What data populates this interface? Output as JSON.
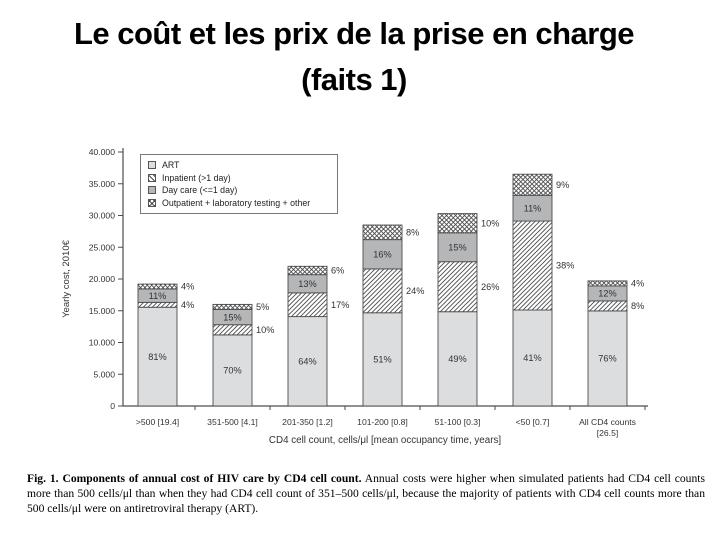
{
  "title": {
    "line1": "Le coût et les prix de la prise en charge",
    "line2": "(faits 1)"
  },
  "chart_data": {
    "type": "bar",
    "stacked": true,
    "title": "",
    "ylabel": "Yearly cost, 2010€",
    "xlabel": "CD4 cell count, cells/μl [mean occupancy time, years]",
    "ylim": [
      0,
      40000
    ],
    "ytick_step": 5000,
    "ytick_labels": [
      "0",
      "5.000",
      "10.000",
      "15.000",
      "20.000",
      "25.000",
      "30.000",
      "35.000",
      "40.000"
    ],
    "grid": false,
    "legend_position": "top-left-inside",
    "categories": [
      ">500 [19.4]",
      "351-500 [4.1]",
      "201-350 [1.2]",
      "101-200 [0.8]",
      "51-100 [0.3]",
      "<50 [0.7]",
      "All CD4 counts\n[26.5]"
    ],
    "totals_yearly_cost_eur": [
      19200,
      16000,
      22000,
      28500,
      30300,
      36500,
      19700
    ],
    "series": [
      {
        "name": "ART",
        "style": "solid-light",
        "label_placement": "inside",
        "percents": [
          81,
          70,
          64,
          51,
          49,
          41,
          76
        ]
      },
      {
        "name": "Inpatient (>1 day)",
        "style": "diagonal-hatch",
        "label_placement": "right",
        "percents": [
          4,
          10,
          17,
          24,
          26,
          38,
          8
        ]
      },
      {
        "name": "Day care (<=1 day)",
        "style": "solid-mid",
        "label_placement": "inside",
        "percents": [
          11,
          15,
          13,
          16,
          15,
          11,
          12
        ]
      },
      {
        "name": "Outpatient + laboratory testing + other",
        "style": "cross-hatch",
        "label_placement": "right",
        "percents": [
          4,
          5,
          6,
          8,
          10,
          9,
          4
        ]
      }
    ]
  },
  "caption": {
    "bold": "Fig. 1. Components of annual cost of HIV care by CD4 cell count.",
    "body": "Annual costs were higher when simulated patients had CD4 cell counts more than 500 cells/μl than when they had CD4 cell count of 351–500 cells/μl, because the majority of patients with CD4 cell counts more than 500 cells/μl were on antiretroviral therapy (ART)."
  },
  "colors": {
    "art_fill": "#dcdddf",
    "daycare_fill": "#b5b6b8",
    "hatch": "#4d4d4d",
    "axis": "#4d4d4d",
    "text": "#333333",
    "title_text": "#000000"
  }
}
